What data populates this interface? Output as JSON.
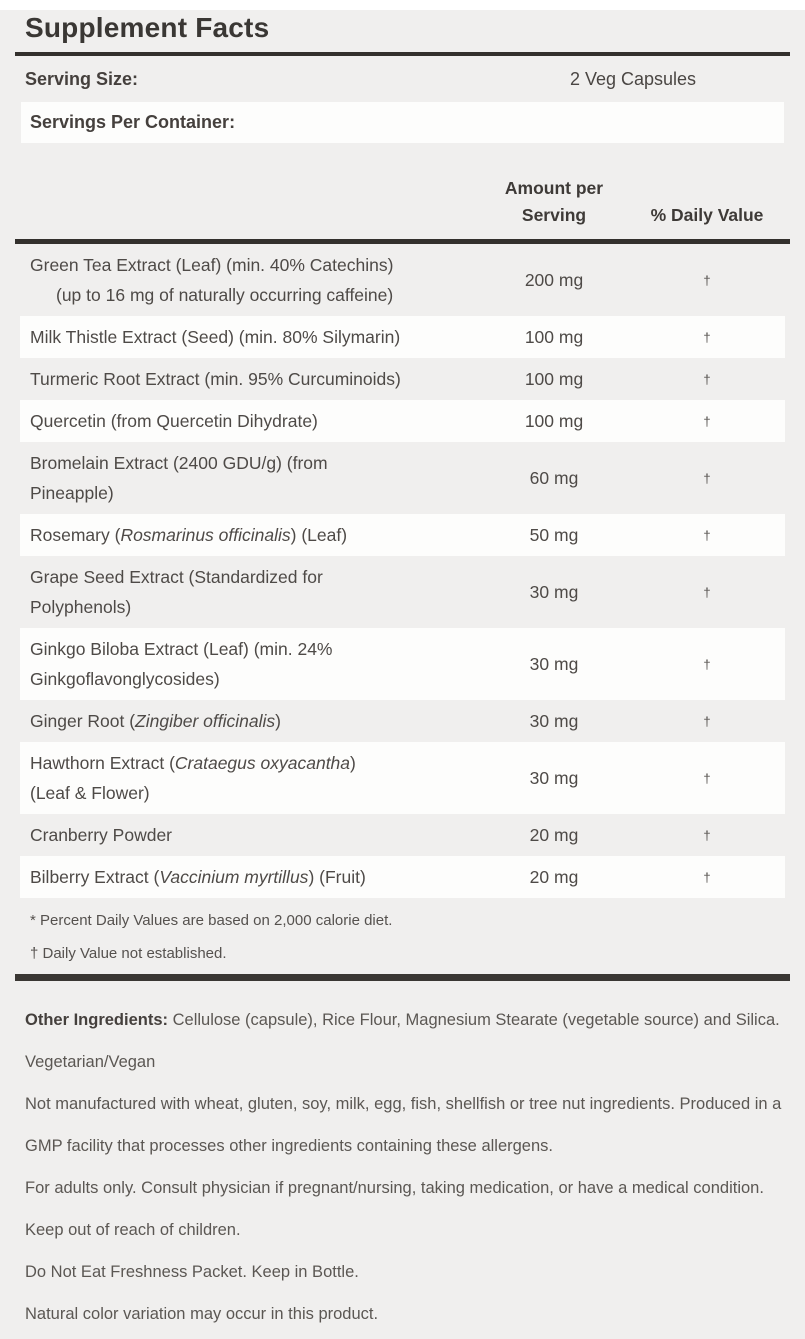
{
  "title": "Supplement Facts",
  "serving": {
    "size_label": "Serving Size:",
    "size_value": "2 Veg Capsules",
    "per_container_label": "Servings Per Container:"
  },
  "table": {
    "amount_header_line1": "Amount per",
    "amount_header_line2": "Serving",
    "dv_header": "% Daily Value",
    "rows": [
      {
        "lines": [
          {
            "parts": [
              {
                "t": "Green Tea Extract (Leaf) (min. 40% Catechins)"
              }
            ]
          },
          {
            "indent": true,
            "parts": [
              {
                "t": "(up to 16 mg of naturally occurring caffeine)"
              }
            ]
          }
        ],
        "amount": "200 mg",
        "dv": "†"
      },
      {
        "lines": [
          {
            "parts": [
              {
                "t": "Milk Thistle Extract (Seed) (min. 80% Silymarin)"
              }
            ]
          }
        ],
        "amount": "100 mg",
        "dv": "†"
      },
      {
        "lines": [
          {
            "parts": [
              {
                "t": "Turmeric Root Extract (min. 95% Curcuminoids)"
              }
            ]
          }
        ],
        "amount": "100 mg",
        "dv": "†"
      },
      {
        "lines": [
          {
            "parts": [
              {
                "t": "Quercetin (from Quercetin Dihydrate)"
              }
            ]
          }
        ],
        "amount": "100 mg",
        "dv": "†"
      },
      {
        "lines": [
          {
            "parts": [
              {
                "t": "Bromelain Extract (2400 GDU/g) (from"
              }
            ]
          },
          {
            "parts": [
              {
                "t": "Pineapple)"
              }
            ]
          }
        ],
        "amount": "60 mg",
        "dv": "†"
      },
      {
        "lines": [
          {
            "parts": [
              {
                "t": "Rosemary ("
              },
              {
                "t": "Rosmarinus officinalis",
                "i": true
              },
              {
                "t": ") (Leaf)"
              }
            ]
          }
        ],
        "amount": "50 mg",
        "dv": "†"
      },
      {
        "lines": [
          {
            "parts": [
              {
                "t": "Grape Seed Extract (Standardized for"
              }
            ]
          },
          {
            "parts": [
              {
                "t": "Polyphenols)"
              }
            ]
          }
        ],
        "amount": "30 mg",
        "dv": "†"
      },
      {
        "lines": [
          {
            "parts": [
              {
                "t": "Ginkgo Biloba Extract (Leaf) (min. 24%"
              }
            ]
          },
          {
            "parts": [
              {
                "t": "Ginkgoflavonglycosides)"
              }
            ]
          }
        ],
        "amount": "30 mg",
        "dv": "†"
      },
      {
        "lines": [
          {
            "parts": [
              {
                "t": "Ginger Root ("
              },
              {
                "t": "Zingiber officinalis",
                "i": true
              },
              {
                "t": ")"
              }
            ]
          }
        ],
        "amount": "30 mg",
        "dv": "†"
      },
      {
        "lines": [
          {
            "parts": [
              {
                "t": "Hawthorn Extract ("
              },
              {
                "t": "Crataegus oxyacantha",
                "i": true
              },
              {
                "t": ")"
              }
            ]
          },
          {
            "parts": [
              {
                "t": "(Leaf & Flower)"
              }
            ]
          }
        ],
        "amount": "30 mg",
        "dv": "†"
      },
      {
        "lines": [
          {
            "parts": [
              {
                "t": "Cranberry Powder"
              }
            ]
          }
        ],
        "amount": "20 mg",
        "dv": "†"
      },
      {
        "lines": [
          {
            "parts": [
              {
                "t": "Bilberry Extract ("
              },
              {
                "t": "Vaccinium myrtillus",
                "i": true
              },
              {
                "t": ") (Fruit)"
              }
            ]
          }
        ],
        "amount": "20 mg",
        "dv": "†"
      }
    ]
  },
  "footnotes": [
    "* Percent Daily Values are based on 2,000 calorie diet.",
    "† Daily Value not established."
  ],
  "notes": [
    {
      "lead": "Other Ingredients:",
      "text": " Cellulose (capsule), Rice Flour, Magnesium Stearate (vegetable source) and Silica."
    },
    {
      "lead": "",
      "text": "Vegetarian/Vegan"
    },
    {
      "lead": "",
      "text": "Not manufactured with wheat, gluten, soy, milk, egg, fish, shellfish or tree nut ingredients. Produced in a GMP facility that processes other ingredients containing these allergens."
    },
    {
      "lead": "",
      "text": "For adults only. Consult physician if pregnant/nursing, taking medication, or have a medical condition. Keep out of reach of children."
    },
    {
      "lead": "",
      "text": "Do Not Eat Freshness Packet. Keep in Bottle."
    },
    {
      "lead": "",
      "text": "Natural color variation may occur in this product."
    }
  ],
  "colors": {
    "background": "#f0efee",
    "stripe": "#fdfdfc",
    "text": "#4e4a47",
    "rule": "#33302d"
  }
}
